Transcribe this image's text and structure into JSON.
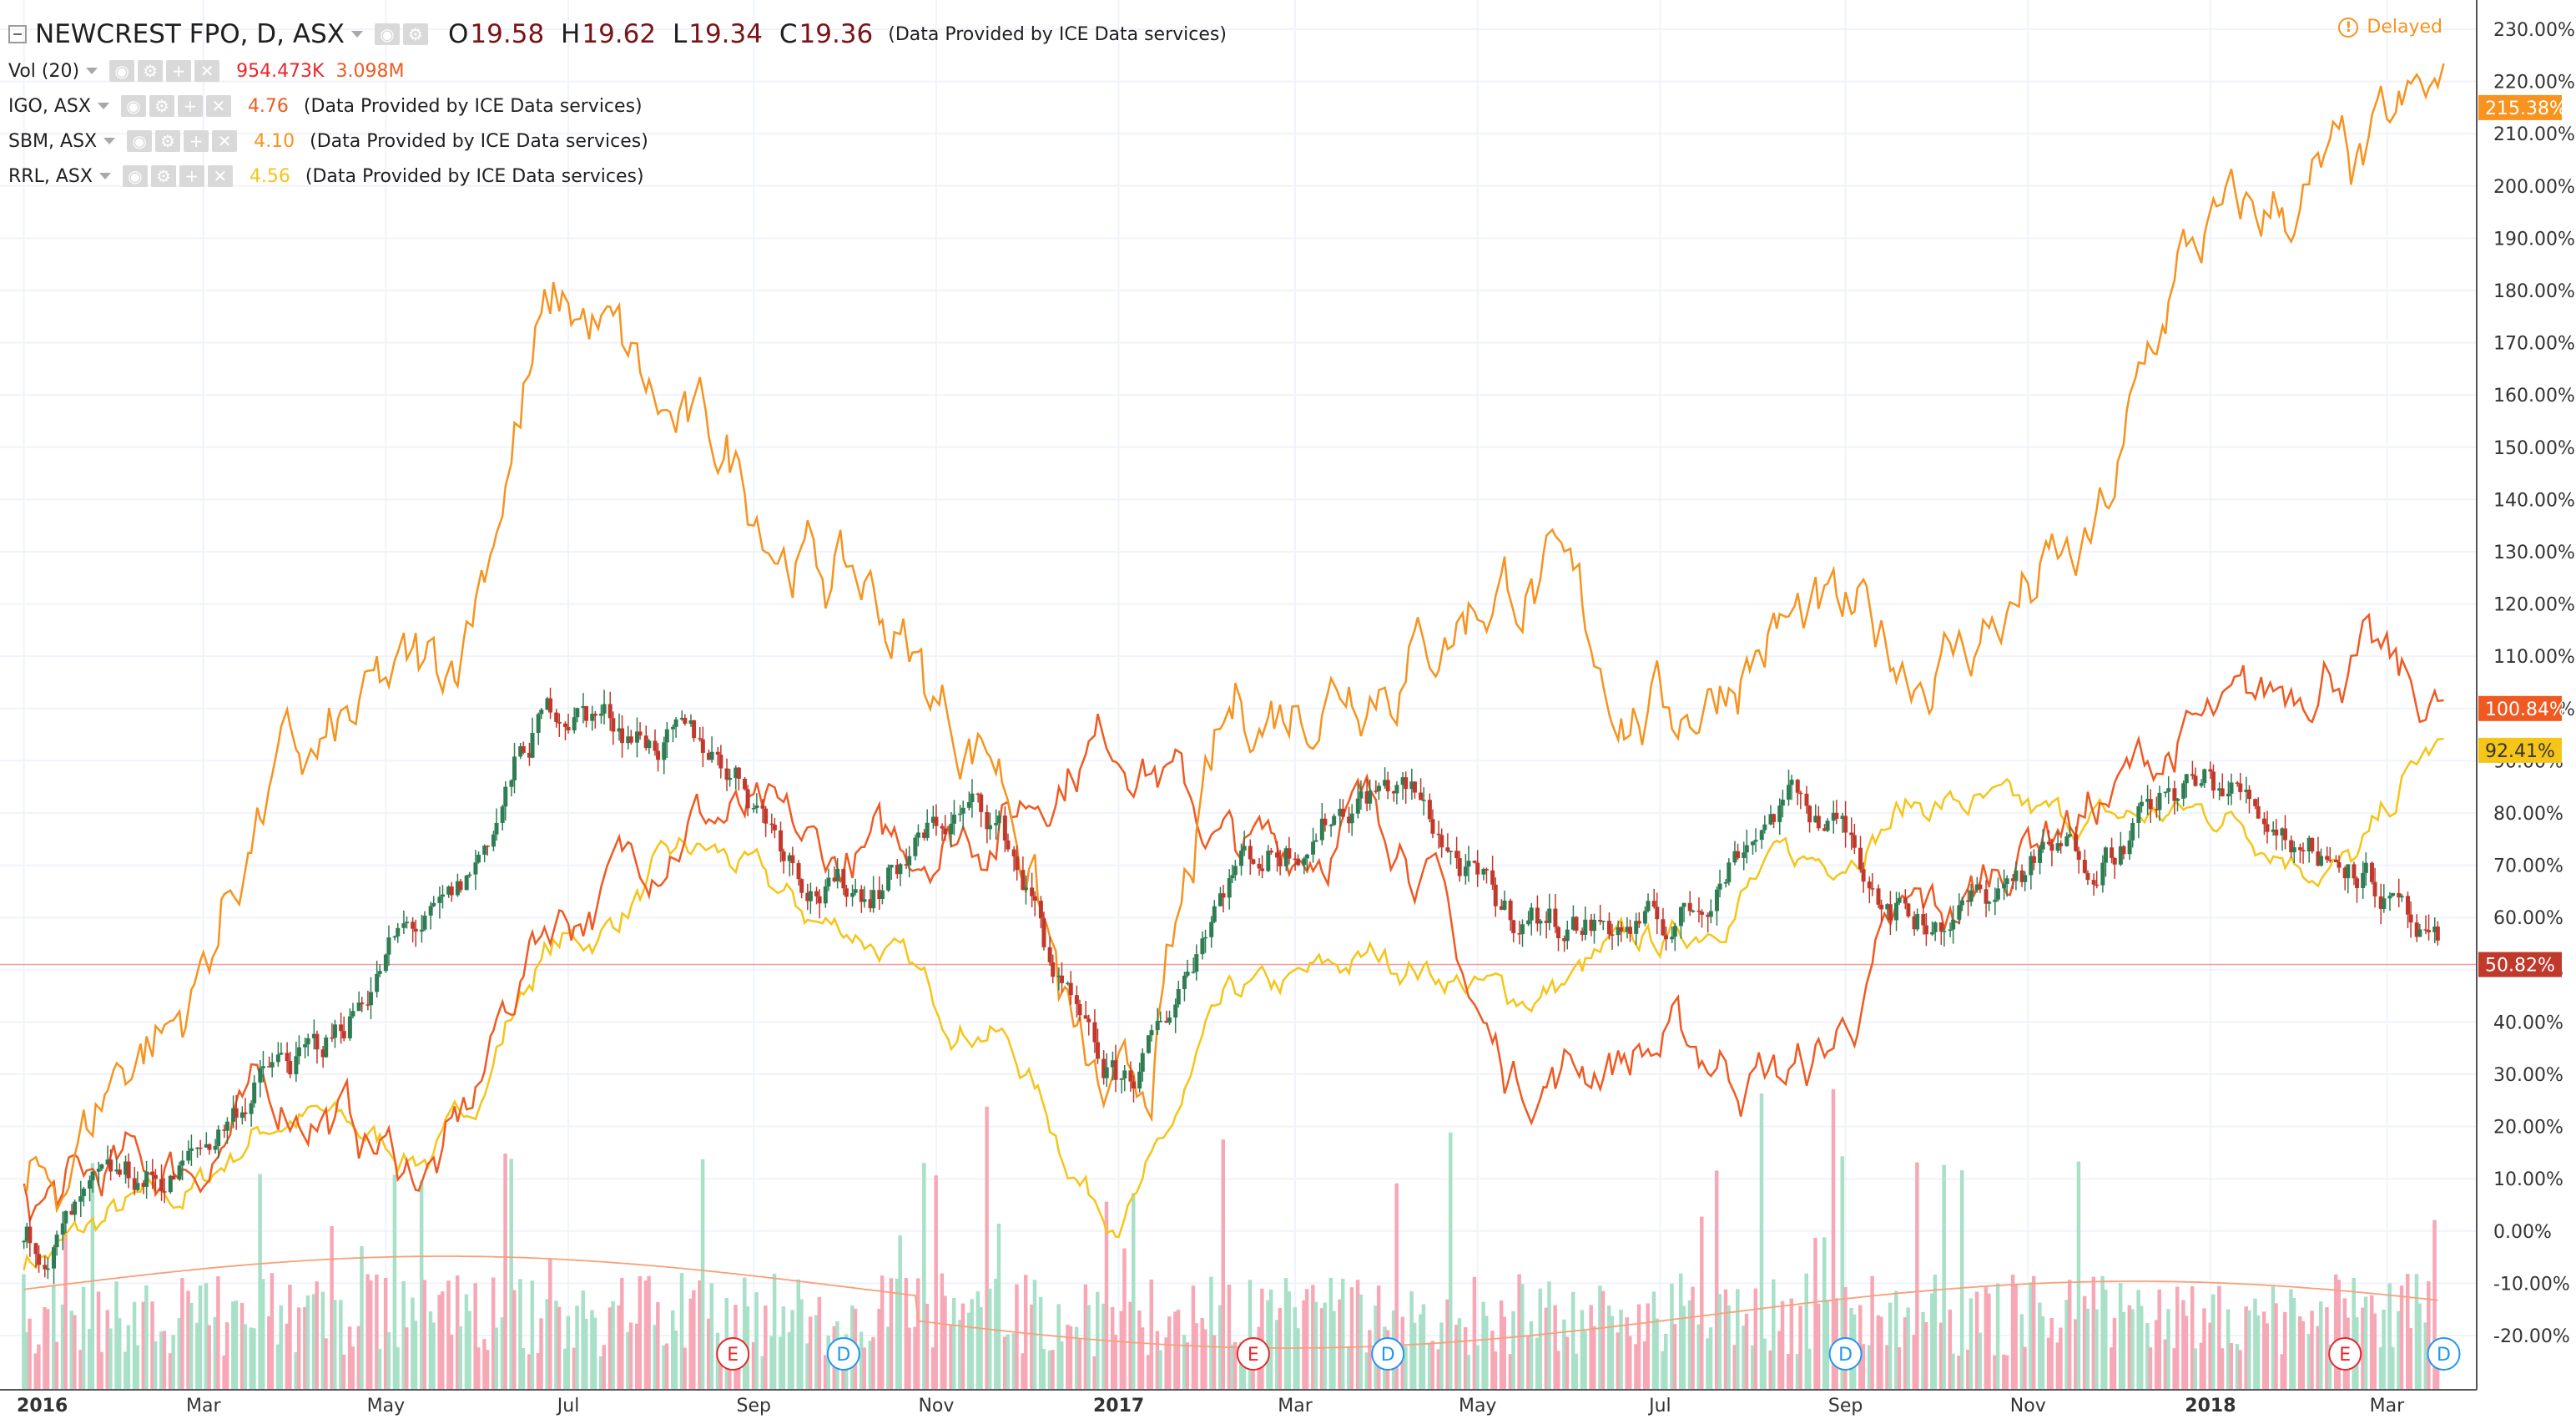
{
  "header": {
    "title": "NEWCREST FPO, D, ASX",
    "o_label": "O",
    "o_value": "19.58",
    "h_label": "H",
    "h_value": "19.62",
    "l_label": "L",
    "l_value": "19.34",
    "c_label": "C",
    "c_value": "19.36",
    "source": "(Data Provided by ICE Data services)",
    "delayed": "Delayed"
  },
  "volume_row": {
    "label": "Vol (20)",
    "value1": "954.473K",
    "value2": "3.098M"
  },
  "compare_rows": [
    {
      "label": "IGO, ASX",
      "value": "4.76",
      "source": "(Data Provided by ICE Data services)",
      "color": "#f05a22"
    },
    {
      "label": "SBM, ASX",
      "value": "4.10",
      "source": "(Data Provided by ICE Data services)",
      "color": "#f7931e"
    },
    {
      "label": "RRL, ASX",
      "value": "4.56",
      "source": "(Data Provided by ICE Data services)",
      "color": "#f5c518"
    }
  ],
  "colors": {
    "up": "#2e7d53",
    "down": "#c0392b",
    "igo": "#f05a22",
    "sbm": "#f7931e",
    "rrl": "#f5c518",
    "vol_up": "#a8e0c8",
    "vol_down": "#f7a8b6",
    "ma": "#f7a07a"
  },
  "chart_data": {
    "type": "line",
    "x_labels": [
      "2016",
      "Mar",
      "May",
      "Jul",
      "Sep",
      "Nov",
      "2017",
      "Mar",
      "May",
      "Jul",
      "Sep",
      "Nov",
      "2018",
      "Mar"
    ],
    "y_ticks": [
      "230.00%",
      "220.00%",
      "210.00%",
      "200.00%",
      "190.00%",
      "180.00%",
      "170.00%",
      "160.00%",
      "150.00%",
      "140.00%",
      "130.00%",
      "120.00%",
      "110.00%",
      "100.00%",
      "90.00%",
      "80.00%",
      "70.00%",
      "60.00%",
      "50.00%",
      "40.00%",
      "30.00%",
      "20.00%",
      "10.00%",
      "0.00%",
      "-10.00%",
      "-20.00%"
    ],
    "ylim": [
      -22,
      232
    ],
    "x_dates": [
      "2016-01-01",
      "2016-02-15",
      "2016-04-01",
      "2016-05-15",
      "2016-07-01",
      "2016-08-15",
      "2016-10-01",
      "2016-11-15",
      "2017-01-01",
      "2017-02-15",
      "2017-04-01",
      "2017-05-15",
      "2017-07-01",
      "2017-08-15",
      "2017-10-01",
      "2017-11-15",
      "2018-01-01",
      "2018-02-15",
      "2018-03-20"
    ],
    "series": [
      {
        "name": "NEWCREST FPO",
        "values": [
          -2,
          10,
          32,
          58,
          100,
          92,
          65,
          80,
          28,
          72,
          85,
          60,
          58,
          82,
          60,
          72,
          85,
          72,
          51
        ],
        "last_label": "50.82%"
      },
      {
        "name": "IGO, ASX",
        "values": [
          5,
          12,
          25,
          12,
          62,
          80,
          70,
          78,
          95,
          72,
          80,
          30,
          35,
          30,
          60,
          80,
          95,
          110,
          100
        ],
        "last_label": "100.84%"
      },
      {
        "name": "SBM, ASX",
        "values": [
          5,
          38,
          88,
          105,
          175,
          150,
          125,
          95,
          20,
          100,
          110,
          125,
          100,
          115,
          110,
          125,
          190,
          200,
          215
        ],
        "last_label": "215.38%"
      },
      {
        "name": "RRL, ASX",
        "values": [
          -5,
          5,
          22,
          15,
          55,
          72,
          58,
          40,
          5,
          45,
          52,
          45,
          55,
          70,
          82,
          78,
          80,
          70,
          92
        ],
        "last_label": "92.41%"
      }
    ],
    "events": [
      {
        "label": "E",
        "date": "2016-08-25",
        "kind": "earnings"
      },
      {
        "label": "D",
        "date": "2016-10-01",
        "kind": "dividend"
      },
      {
        "label": "E",
        "date": "2017-02-15",
        "kind": "earnings"
      },
      {
        "label": "D",
        "date": "2017-04-01",
        "kind": "dividend"
      },
      {
        "label": "D",
        "date": "2017-09-01",
        "kind": "dividend"
      },
      {
        "label": "E",
        "date": "2018-02-15",
        "kind": "earnings"
      },
      {
        "label": "D",
        "date": "2018-03-20",
        "kind": "dividend"
      }
    ],
    "grid": true,
    "legend": "top-left"
  }
}
